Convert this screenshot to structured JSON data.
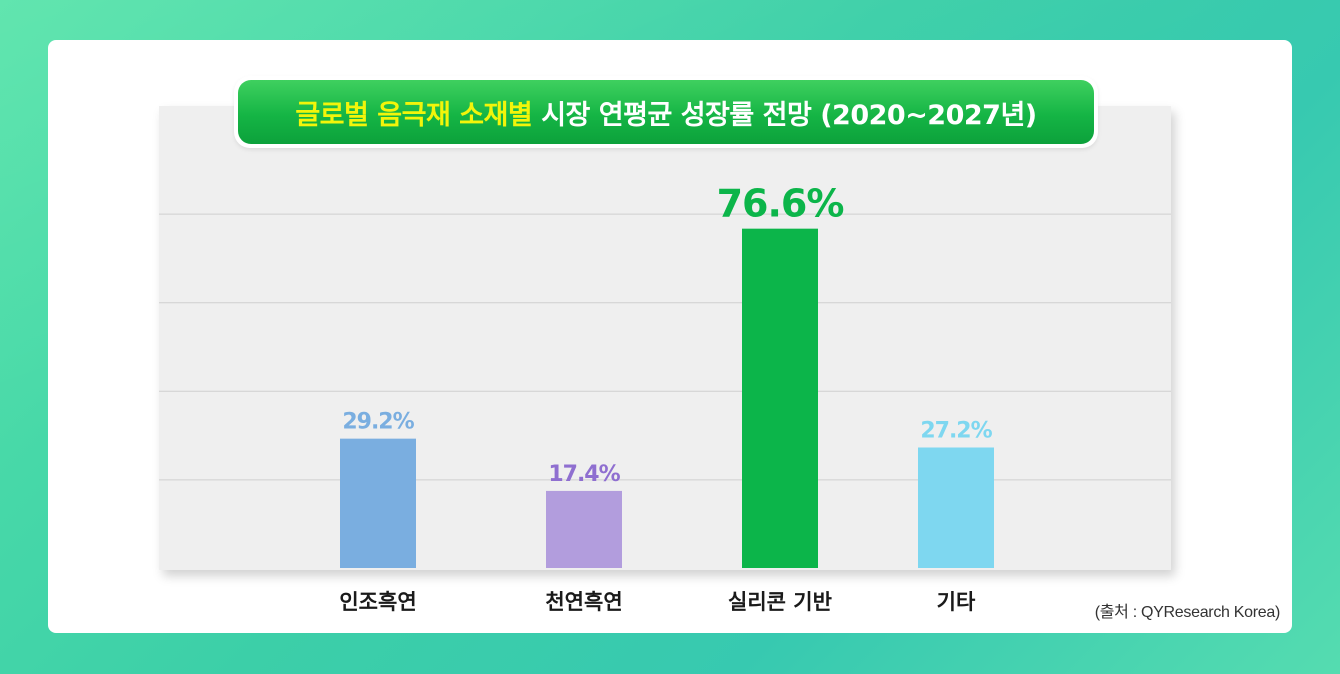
{
  "chart_data": {
    "type": "bar",
    "title_highlight": "글로벌 음극재 소재별",
    "title_rest": "시장 연평균 성장률 전망 (2020~2027년)",
    "categories": [
      "인조흑연",
      "천연흑연",
      "실리콘 기반",
      "기타"
    ],
    "values": [
      29.2,
      17.4,
      76.6,
      27.2
    ],
    "labels": [
      "29.2%",
      "17.4%",
      "76.6%",
      "27.2%"
    ],
    "colors": [
      "#7aaee0",
      "#b29ddd",
      "#0cb54a",
      "#7ed7f0"
    ],
    "label_colors": [
      "#7aaee0",
      "#8f6fd0",
      "#0cb54a",
      "#7ed7f0"
    ],
    "highlight_index": 2,
    "ylim": [
      0,
      100
    ],
    "grid": true,
    "source": "(출처 : QYResearch Korea)"
  }
}
